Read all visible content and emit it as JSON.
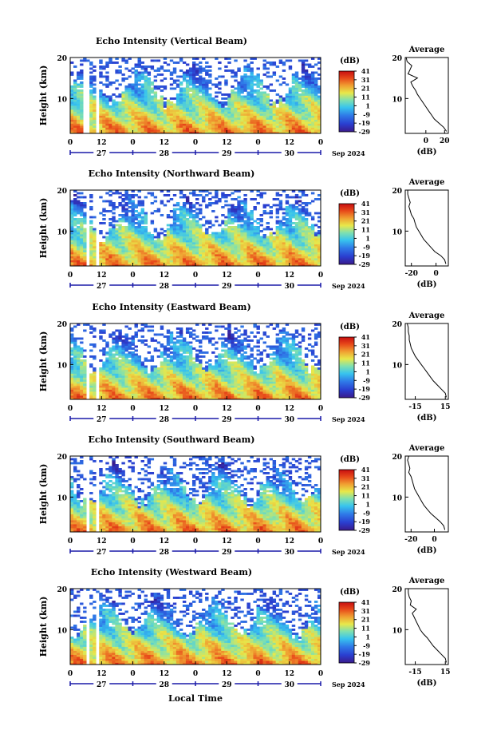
{
  "figure": {
    "date_label": "Sep 2024",
    "x_axis_title": "Local Time",
    "colorbar_unit": "(dB)",
    "avg_title": "Average",
    "avg_xlabel": "(dB)"
  },
  "chart_data": [
    {
      "type": "heatmap",
      "title": "Echo Intensity (Vertical Beam)",
      "ylabel": "Height (km)",
      "ylim": [
        1.5,
        20
      ],
      "yticks": [
        20,
        10
      ],
      "xticks": [
        "0",
        "12",
        "0",
        "12",
        "0",
        "12",
        "0",
        "12",
        "0"
      ],
      "day_labels": [
        "27",
        "28",
        "29",
        "30"
      ],
      "colorbar_ticks": [
        "41",
        "31",
        "21",
        "11",
        "1",
        "-9",
        "-19",
        "-29"
      ],
      "colorbar_range": [
        -29,
        41
      ],
      "average_profile": {
        "xlim": [
          -22,
          24
        ],
        "xticks": [
          "0",
          "20"
        ],
        "ylim": [
          1.5,
          20
        ],
        "yticks": [
          20,
          10
        ],
        "height_km": [
          2,
          3,
          4,
          5,
          6,
          7,
          8,
          9,
          10,
          11,
          12,
          13,
          14,
          15,
          16,
          17,
          18,
          19,
          20
        ],
        "value_db": [
          22,
          19,
          14,
          9,
          6,
          3,
          0,
          -3,
          -6,
          -9,
          -11,
          -14,
          -16,
          -9,
          -19,
          -17,
          -15,
          -20,
          -21
        ]
      }
    },
    {
      "type": "heatmap",
      "title": "Echo Intensity (Northward Beam)",
      "ylabel": "Height (km)",
      "ylim": [
        1.5,
        20
      ],
      "yticks": [
        20,
        10
      ],
      "xticks": [
        "0",
        "12",
        "0",
        "12",
        "0",
        "12",
        "0",
        "12",
        "0"
      ],
      "day_labels": [
        "27",
        "28",
        "29",
        "30"
      ],
      "colorbar_ticks": [
        "41",
        "31",
        "21",
        "11",
        "1",
        "-9",
        "-19",
        "-29"
      ],
      "colorbar_range": [
        -29,
        41
      ],
      "average_profile": {
        "xlim": [
          -25,
          10
        ],
        "xticks": [
          "-20",
          "0"
        ],
        "ylim": [
          1.5,
          20
        ],
        "yticks": [
          20,
          10
        ],
        "height_km": [
          2,
          3,
          4,
          5,
          6,
          7,
          8,
          9,
          10,
          11,
          12,
          13,
          14,
          15,
          16,
          17,
          18,
          19,
          20
        ],
        "value_db": [
          8,
          7,
          4,
          -1,
          -4,
          -7,
          -10,
          -12,
          -14,
          -16,
          -17,
          -18,
          -20,
          -21,
          -22,
          -21,
          -22,
          -23,
          -23
        ]
      }
    },
    {
      "type": "heatmap",
      "title": "Echo Intensity (Eastward Beam)",
      "ylabel": "Height (km)",
      "ylim": [
        1.5,
        20
      ],
      "yticks": [
        20,
        10
      ],
      "xticks": [
        "0",
        "12",
        "0",
        "12",
        "0",
        "12",
        "0",
        "12",
        "0"
      ],
      "day_labels": [
        "27",
        "28",
        "29",
        "30"
      ],
      "colorbar_ticks": [
        "41",
        "31",
        "21",
        "11",
        "1",
        "-9",
        "-19",
        "-29"
      ],
      "colorbar_range": [
        -29,
        41
      ],
      "average_profile": {
        "xlim": [
          -25,
          18
        ],
        "xticks": [
          "-15",
          "15"
        ],
        "ylim": [
          1.5,
          20
        ],
        "yticks": [
          20,
          10
        ],
        "height_km": [
          2,
          3,
          4,
          5,
          6,
          7,
          8,
          9,
          10,
          11,
          12,
          13,
          14,
          15,
          16,
          17,
          18,
          19,
          20
        ],
        "value_db": [
          16,
          15,
          11,
          7,
          3,
          0,
          -3,
          -6,
          -9,
          -12,
          -15,
          -17,
          -19,
          -20,
          -21,
          -21,
          -22,
          -22,
          -23
        ]
      }
    },
    {
      "type": "heatmap",
      "title": "Echo Intensity (Southward Beam)",
      "ylabel": "Height (km)",
      "ylim": [
        1.5,
        20
      ],
      "yticks": [
        20,
        10
      ],
      "xticks": [
        "0",
        "12",
        "0",
        "12",
        "0",
        "12",
        "0",
        "12",
        "0"
      ],
      "day_labels": [
        "27",
        "28",
        "29",
        "30"
      ],
      "colorbar_ticks": [
        "41",
        "31",
        "21",
        "11",
        "1",
        "-9",
        "-19",
        "-29"
      ],
      "colorbar_range": [
        -29,
        41
      ],
      "average_profile": {
        "xlim": [
          -25,
          12
        ],
        "xticks": [
          "-20",
          "0"
        ],
        "ylim": [
          1.5,
          20
        ],
        "yticks": [
          20,
          10
        ],
        "height_km": [
          2,
          3,
          4,
          5,
          6,
          7,
          8,
          9,
          10,
          11,
          12,
          13,
          14,
          15,
          16,
          17,
          18,
          19,
          20
        ],
        "value_db": [
          9,
          8,
          5,
          1,
          -3,
          -6,
          -9,
          -11,
          -13,
          -15,
          -17,
          -18,
          -19,
          -20,
          -22,
          -21,
          -22,
          -23,
          -22
        ]
      }
    },
    {
      "type": "heatmap",
      "title": "Echo Intensity (Westward Beam)",
      "ylabel": "Height (km)",
      "ylim": [
        1.5,
        20
      ],
      "yticks": [
        20,
        10
      ],
      "xticks": [
        "0",
        "12",
        "0",
        "12",
        "0",
        "12",
        "0",
        "12",
        "0"
      ],
      "day_labels": [
        "27",
        "28",
        "29",
        "30"
      ],
      "colorbar_ticks": [
        "41",
        "31",
        "21",
        "11",
        "1",
        "-9",
        "-19",
        "-29"
      ],
      "colorbar_range": [
        -29,
        41
      ],
      "average_profile": {
        "xlim": [
          -25,
          18
        ],
        "xticks": [
          "-15",
          "15"
        ],
        "ylim": [
          1.5,
          20
        ],
        "yticks": [
          20,
          10
        ],
        "height_km": [
          2,
          3,
          4,
          5,
          6,
          7,
          8,
          9,
          10,
          11,
          12,
          13,
          14,
          15,
          16,
          17,
          18,
          19,
          20
        ],
        "value_db": [
          16,
          15,
          11,
          7,
          3,
          0,
          -3,
          -7,
          -10,
          -12,
          -14,
          -16,
          -18,
          -14,
          -20,
          -19,
          -21,
          -22,
          -22
        ]
      }
    }
  ],
  "colors": {
    "scale": [
      "#3a1a8c",
      "#2a3fd0",
      "#2f7be8",
      "#38c4ee",
      "#7fe0b0",
      "#e8e84a",
      "#f0a032",
      "#e84a1a",
      "#c80e10"
    ],
    "time_axis": "#1a1aa8",
    "frame": "#000000"
  }
}
